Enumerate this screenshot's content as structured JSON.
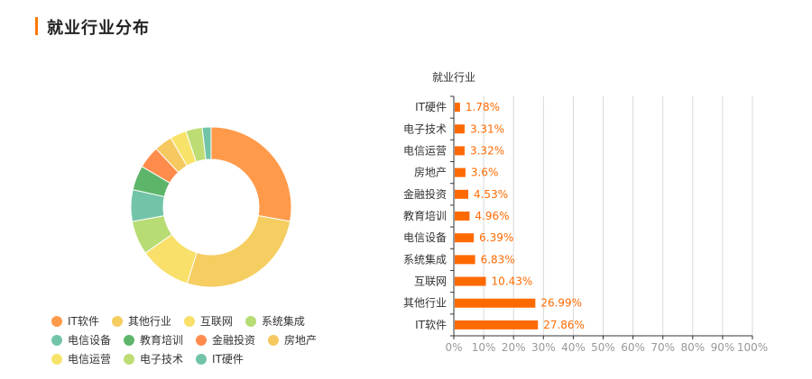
{
  "page": {
    "title": "就业行业分布",
    "accent_color": "#ff7700"
  },
  "chart_data": [
    {
      "type": "pie",
      "donut": true,
      "start_angle": "top",
      "categories": [
        "IT软件",
        "其他行业",
        "互联网",
        "系统集成",
        "电信设备",
        "教育培训",
        "金融投资",
        "房地产",
        "电信运营",
        "电子技术",
        "IT硬件"
      ],
      "values": [
        27.86,
        26.99,
        10.43,
        6.83,
        6.39,
        4.96,
        4.53,
        3.6,
        3.32,
        3.31,
        1.78
      ],
      "colors": [
        "#ff9a4a",
        "#f5cd60",
        "#f8e06a",
        "#b7dc74",
        "#72c4a8",
        "#5db56a",
        "#ff8c4d",
        "#f5c860",
        "#f8e36a",
        "#bedc74",
        "#72c4a8"
      ],
      "legend": "bottom-left"
    },
    {
      "type": "bar",
      "orientation": "horizontal",
      "title": "就业行业",
      "categories": [
        "IT硬件",
        "电子技术",
        "电信运营",
        "房地产",
        "金融投资",
        "教育培训",
        "电信设备",
        "系统集成",
        "互联网",
        "其他行业",
        "IT软件"
      ],
      "values": [
        1.78,
        3.31,
        3.32,
        3.6,
        4.53,
        4.96,
        6.39,
        6.83,
        10.43,
        26.99,
        27.86
      ],
      "data_labels": [
        "1.78%",
        "3.31%",
        "3.32%",
        "3.6%",
        "4.53%",
        "4.96%",
        "6.39%",
        "6.83%",
        "10.43%",
        "26.99%",
        "27.86%"
      ],
      "xlim": [
        0,
        100
      ],
      "x_ticks": [
        "0%",
        "10%",
        "20%",
        "30%",
        "40%",
        "50%",
        "60%",
        "70%",
        "80%",
        "90%",
        "100%"
      ],
      "bar_color": "#ff6a00",
      "grid": true
    }
  ]
}
